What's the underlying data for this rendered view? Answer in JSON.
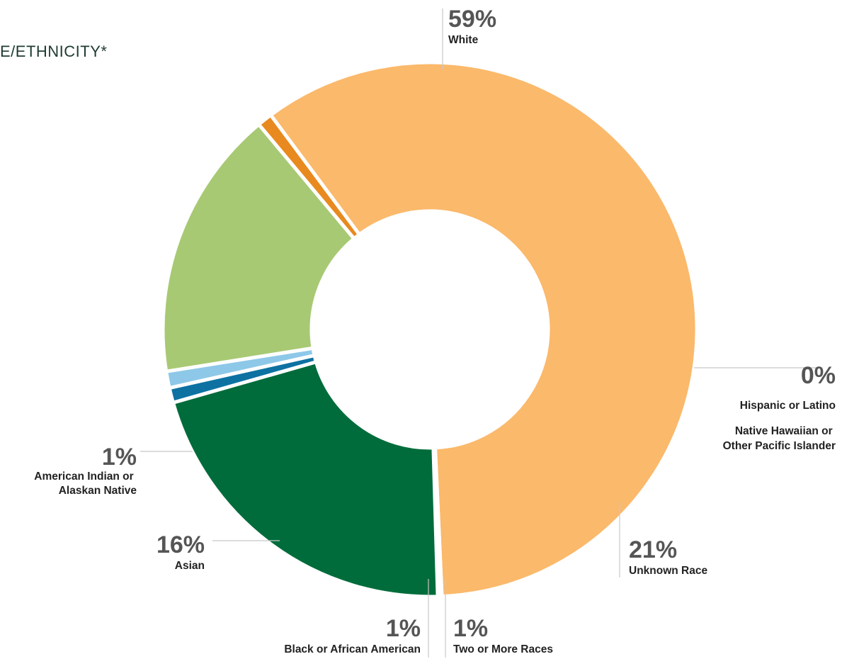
{
  "title": "E/ETHNICITY*",
  "colors": {
    "text": "#555555",
    "title": "#1f3b32",
    "leader": "#c8c8c8"
  },
  "chart_data": {
    "type": "pie",
    "title": "E/ETHNICITY*",
    "donut": true,
    "slices": [
      {
        "label": "White",
        "value_label": "59%",
        "value": 59.3,
        "color": "#fbb96b"
      },
      {
        "label": "Hispanic or Latino",
        "value_label": "",
        "value": 0.15,
        "color": "#3a8f5a"
      },
      {
        "label": "Native Hawaiian or Other Pacific Islander",
        "value_label": "",
        "value": 0.1,
        "color": "#2e7a4c"
      },
      {
        "label": "Unknown Race",
        "value_label": "21%",
        "value": 21.0,
        "color": "#006c3b"
      },
      {
        "label": "Two or More Races",
        "value_label": "1%",
        "value": 0.9,
        "color": "#0d72a2"
      },
      {
        "label": "Black or African American",
        "value_label": "1%",
        "value": 1.0,
        "color": "#8ec8e8"
      },
      {
        "label": "Asian",
        "value_label": "16%",
        "value": 16.4,
        "color": "#a8c973"
      },
      {
        "label": "American Indian or Alaskan Native",
        "value_label": "1%",
        "value": 0.9,
        "color": "#e88a1f"
      }
    ],
    "group_labels": {
      "hispanic_native_hawaiian_value": "0%"
    }
  }
}
